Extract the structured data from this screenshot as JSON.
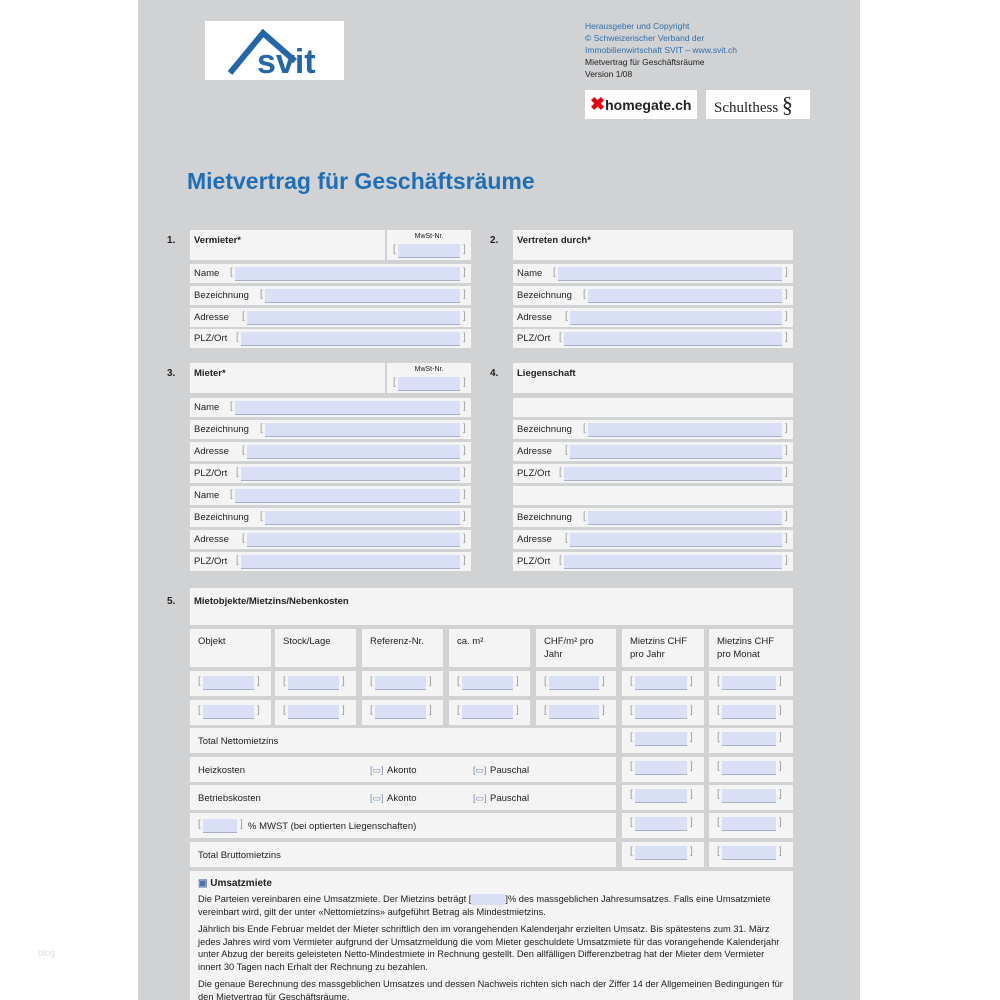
{
  "publisher": {
    "line1": "Herausgeber und Copyright",
    "line2": "© Schweizerischer Verband der",
    "line3": "Immobilienwirtschaft SVIT – www.svit.ch",
    "doc_name": "Mietvertrag für Geschäftsräume",
    "version": "Version 1/08"
  },
  "logos": {
    "svit": "svit",
    "homegate": "homegate.ch",
    "schulthess": "Schulthess",
    "schulthess_mark": "§"
  },
  "title": "Mietvertrag für Geschäftsräume",
  "mwst_label": "MwSt-Nr.",
  "sections": [
    {
      "num": "1.",
      "title": "Vermieter*",
      "mwst": true,
      "rows": [
        "Name",
        "Bezeichnung",
        "Adresse",
        "PLZ/Ort"
      ]
    },
    {
      "num": "2.",
      "title": "Vertreten durch*",
      "mwst": false,
      "rows": [
        "Name",
        "Bezeichnung",
        "Adresse",
        "PLZ/Ort"
      ]
    },
    {
      "num": "3.",
      "title": "Mieter*",
      "mwst": true,
      "rows": [
        "Name",
        "Bezeichnung",
        "Adresse",
        "PLZ/Ort",
        "Name",
        "Bezeichnung",
        "Adresse",
        "PLZ/Ort"
      ]
    },
    {
      "num": "4.",
      "title": "Liegenschaft",
      "mwst": false,
      "rows": [
        "",
        "Bezeichnung",
        "Adresse",
        "PLZ/Ort",
        "",
        "Bezeichnung",
        "Adresse",
        "PLZ/Ort"
      ]
    }
  ],
  "section5": {
    "num": "5.",
    "title": "Mietobjekte/Mietzins/Nebenkosten",
    "columns": [
      "Objekt",
      "Stock/Lage",
      "Referenz-Nr.",
      "ca. m²",
      "CHF/m² pro Jahr",
      "Mietzins CHF pro Jahr",
      "Mietzins CHF pro Monat"
    ],
    "totals": [
      {
        "label": "Total Nettomietzins"
      },
      {
        "label": "Heizkosten",
        "opt1": "Akonto",
        "opt2": "Pauschal"
      },
      {
        "label": "Betriebskosten",
        "opt1": "Akonto",
        "opt2": "Pauschal"
      },
      {
        "label": "% MWST (bei optierten Liegenschaften)",
        "prefix_input": true
      },
      {
        "label": "Total Bruttomietzins"
      }
    ]
  },
  "umsatz": {
    "title": "Umsatzmiete",
    "p1a": "Die Parteien vereinbaren eine Umsatzmiete. Der Mietzins beträgt [",
    "p1b": "]% des massgeblichen Jahresumsatzes. Falls eine Umsatzmiete vereinbart wird, gilt der unter «Nettomietzins» aufgeführt Betrag als Mindestmietzins.",
    "p2": "Jährlich bis Ende Februar meldet der Mieter schriftlich den im vorangehenden Kalenderjahr erzielten Umsatz. Bis spätestens zum 31. März jedes Jahres wird vom Vermieter aufgrund der Umsatzmeldung die vom Mieter geschuldete Umsatzmiete für das vorangehende Kalenderjahr unter Abzug der bereits geleisteten Netto-Mindestmiete in Rechnung gestellt. Den allfälligen Differenzbetrag hat der Mieter dem Vermieter innert 30 Tagen nach Erhalt der Rechnung zu bezahlen.",
    "p3": "Die genaue Berechnung des massgeblichen Umsatzes und dessen Nachweis richten sich nach der Ziffer 14 der Allgemeinen Bedingungen für den Mietvertrag für Geschäftsräume."
  },
  "watermark": "blog",
  "colors": {
    "title": "#1f6fb5",
    "input": "#d9dff4",
    "doc_bg": "#d1d2d4"
  }
}
